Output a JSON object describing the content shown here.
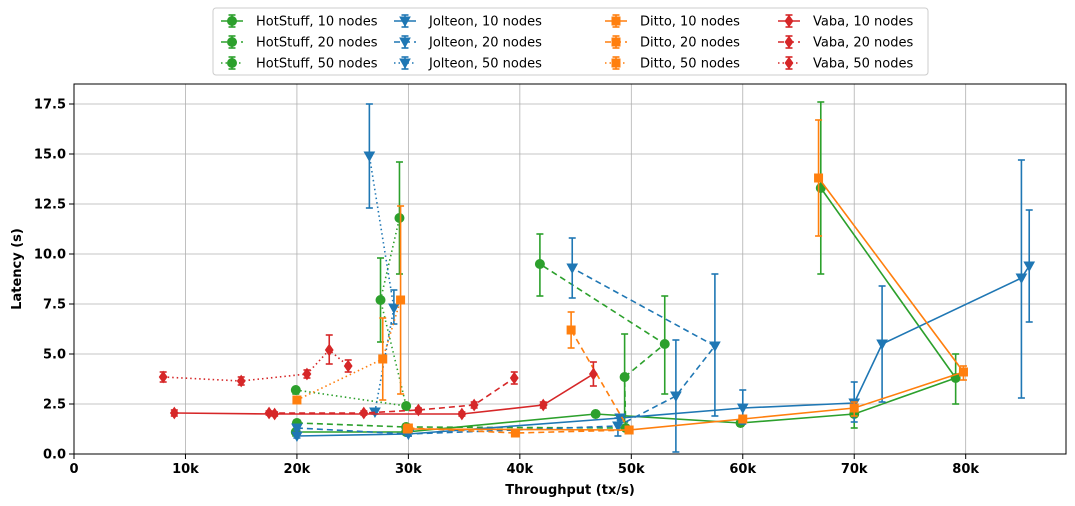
{
  "chart_data": {
    "type": "line",
    "title": "",
    "xlabel": "Throughput (tx/s)",
    "ylabel": "Latency (s)",
    "xlim": [
      0,
      89000
    ],
    "ylim": [
      0,
      18.5
    ],
    "x_ticks": [
      0,
      10000,
      20000,
      30000,
      40000,
      50000,
      60000,
      70000,
      80000
    ],
    "x_tick_labels": [
      "0",
      "10k",
      "20k",
      "30k",
      "40k",
      "50k",
      "60k",
      "70k",
      "80k"
    ],
    "y_ticks": [
      0.0,
      2.5,
      5.0,
      7.5,
      10.0,
      12.5,
      15.0,
      17.5
    ],
    "y_tick_labels": [
      "0.0",
      "2.5",
      "5.0",
      "7.5",
      "10.0",
      "12.5",
      "15.0",
      "17.5"
    ],
    "grid": true,
    "legend_position": "top-center",
    "series": [
      {
        "name": "HotStuff, 10 nodes",
        "color": "#2ca02c",
        "linestyle": "solid",
        "marker": "circle",
        "points": [
          {
            "x": 19900,
            "y": 1.1,
            "lo": 0.9,
            "hi": 1.2
          },
          {
            "x": 29800,
            "y": 1.1,
            "lo": 1.0,
            "hi": 1.2
          },
          {
            "x": 46800,
            "y": 2.0,
            "lo": 1.9,
            "hi": 2.1
          },
          {
            "x": 59800,
            "y": 1.55,
            "lo": 1.4,
            "hi": 1.7
          },
          {
            "x": 70000,
            "y": 2.0,
            "lo": 1.3,
            "hi": 2.4
          },
          {
            "x": 79100,
            "y": 3.8,
            "lo": 2.5,
            "hi": 5.0
          },
          {
            "x": 67000,
            "y": 13.3,
            "lo": 9.0,
            "hi": 17.6
          }
        ]
      },
      {
        "name": "HotStuff, 20 nodes",
        "color": "#2ca02c",
        "linestyle": "dashed",
        "marker": "circle",
        "points": [
          {
            "x": 20000,
            "y": 1.55,
            "lo": 1.4,
            "hi": 1.7
          },
          {
            "x": 29800,
            "y": 1.35,
            "lo": 1.2,
            "hi": 1.5
          },
          {
            "x": 49500,
            "y": 1.3,
            "lo": 1.2,
            "hi": 1.4
          },
          {
            "x": 49400,
            "y": 3.85,
            "lo": 1.6,
            "hi": 6.0
          },
          {
            "x": 53000,
            "y": 5.5,
            "lo": 3.0,
            "hi": 7.9
          },
          {
            "x": 41800,
            "y": 9.5,
            "lo": 7.9,
            "hi": 11.0
          }
        ]
      },
      {
        "name": "HotStuff, 50 nodes",
        "color": "#2ca02c",
        "linestyle": "dotted",
        "marker": "circle",
        "points": [
          {
            "x": 19900,
            "y": 3.2,
            "lo": 3.0,
            "hi": 3.3
          },
          {
            "x": 29800,
            "y": 2.4,
            "lo": 2.2,
            "hi": 2.5
          },
          {
            "x": 27500,
            "y": 7.7,
            "lo": 5.6,
            "hi": 9.8
          },
          {
            "x": 29200,
            "y": 11.8,
            "lo": 9.0,
            "hi": 14.6
          }
        ]
      },
      {
        "name": "Jolteon, 10 nodes",
        "color": "#1f77b4",
        "linestyle": "solid",
        "marker": "triangle-down",
        "points": [
          {
            "x": 20000,
            "y": 0.9,
            "lo": 0.8,
            "hi": 1.0
          },
          {
            "x": 30000,
            "y": 1.0,
            "lo": 0.9,
            "hi": 1.1
          },
          {
            "x": 49000,
            "y": 1.8,
            "lo": 1.7,
            "hi": 1.9
          },
          {
            "x": 60000,
            "y": 2.3,
            "lo": 1.5,
            "hi": 3.2
          },
          {
            "x": 70000,
            "y": 2.55,
            "lo": 1.6,
            "hi": 3.6
          },
          {
            "x": 72500,
            "y": 5.5,
            "lo": 2.6,
            "hi": 8.4
          },
          {
            "x": 85000,
            "y": 8.8,
            "lo": 2.8,
            "hi": 14.7
          },
          {
            "x": 85700,
            "y": 9.4,
            "lo": 6.6,
            "hi": 12.2
          }
        ]
      },
      {
        "name": "Jolteon, 20 nodes",
        "color": "#1f77b4",
        "linestyle": "dashed",
        "marker": "triangle-down",
        "points": [
          {
            "x": 20000,
            "y": 1.3,
            "lo": 1.2,
            "hi": 1.4
          },
          {
            "x": 30000,
            "y": 1.0,
            "lo": 0.9,
            "hi": 1.1
          },
          {
            "x": 48800,
            "y": 1.4,
            "lo": 0.9,
            "hi": 1.8
          },
          {
            "x": 54000,
            "y": 2.9,
            "lo": 0.1,
            "hi": 5.7
          },
          {
            "x": 57500,
            "y": 5.4,
            "lo": 1.9,
            "hi": 9.0
          },
          {
            "x": 44700,
            "y": 9.3,
            "lo": 7.8,
            "hi": 10.8
          }
        ]
      },
      {
        "name": "Jolteon, 50 nodes",
        "color": "#1f77b4",
        "linestyle": "dotted",
        "marker": "triangle-down",
        "points": [
          {
            "x": 27000,
            "y": 2.1,
            "lo": 2.0,
            "hi": 2.2
          },
          {
            "x": 28700,
            "y": 7.3,
            "lo": 6.5,
            "hi": 8.2
          },
          {
            "x": 26500,
            "y": 14.9,
            "lo": 12.3,
            "hi": 17.5
          }
        ]
      },
      {
        "name": "Ditto, 10 nodes",
        "color": "#ff7f0e",
        "linestyle": "solid",
        "marker": "square",
        "points": [
          {
            "x": 29900,
            "y": 1.25,
            "lo": 1.15,
            "hi": 1.35
          },
          {
            "x": 49800,
            "y": 1.2,
            "lo": 1.1,
            "hi": 1.3
          },
          {
            "x": 60000,
            "y": 1.75,
            "lo": 1.6,
            "hi": 1.9
          },
          {
            "x": 70000,
            "y": 2.3,
            "lo": 1.9,
            "hi": 2.6
          },
          {
            "x": 79800,
            "y": 4.1,
            "lo": 3.7,
            "hi": 4.4
          },
          {
            "x": 66800,
            "y": 13.8,
            "lo": 10.9,
            "hi": 16.7
          }
        ]
      },
      {
        "name": "Ditto, 20 nodes",
        "color": "#ff7f0e",
        "linestyle": "dashed",
        "marker": "square",
        "points": [
          {
            "x": 30000,
            "y": 1.3,
            "lo": 1.2,
            "hi": 1.4
          },
          {
            "x": 39600,
            "y": 1.05,
            "lo": 0.95,
            "hi": 1.15
          },
          {
            "x": 49800,
            "y": 1.2,
            "lo": 1.1,
            "hi": 1.3
          },
          {
            "x": 44600,
            "y": 6.2,
            "lo": 5.3,
            "hi": 7.1
          }
        ]
      },
      {
        "name": "Ditto, 50 nodes",
        "color": "#ff7f0e",
        "linestyle": "dotted",
        "marker": "square",
        "points": [
          {
            "x": 20000,
            "y": 2.7,
            "lo": 2.6,
            "hi": 2.8
          },
          {
            "x": 27700,
            "y": 4.75,
            "lo": 2.7,
            "hi": 6.8
          },
          {
            "x": 29300,
            "y": 7.7,
            "lo": 3.0,
            "hi": 12.4
          }
        ]
      },
      {
        "name": "Vaba, 10 nodes",
        "color": "#d62728",
        "linestyle": "solid",
        "marker": "diamond",
        "points": [
          {
            "x": 9000,
            "y": 2.05,
            "lo": 1.9,
            "hi": 2.2
          },
          {
            "x": 18000,
            "y": 2.0,
            "lo": 1.9,
            "hi": 2.1
          },
          {
            "x": 34800,
            "y": 2.0,
            "lo": 1.9,
            "hi": 2.1
          },
          {
            "x": 42100,
            "y": 2.45,
            "lo": 2.3,
            "hi": 2.6
          },
          {
            "x": 46600,
            "y": 4.0,
            "lo": 3.4,
            "hi": 4.6
          }
        ]
      },
      {
        "name": "Vaba, 20 nodes",
        "color": "#d62728",
        "linestyle": "dashed",
        "marker": "diamond",
        "points": [
          {
            "x": 17500,
            "y": 2.05,
            "lo": 1.95,
            "hi": 2.15
          },
          {
            "x": 26000,
            "y": 2.05,
            "lo": 1.95,
            "hi": 2.15
          },
          {
            "x": 30900,
            "y": 2.2,
            "lo": 2.1,
            "hi": 2.3
          },
          {
            "x": 35900,
            "y": 2.45,
            "lo": 2.3,
            "hi": 2.6
          },
          {
            "x": 39500,
            "y": 3.8,
            "lo": 3.5,
            "hi": 4.1
          }
        ]
      },
      {
        "name": "Vaba, 50 nodes",
        "color": "#d62728",
        "linestyle": "dotted",
        "marker": "diamond",
        "points": [
          {
            "x": 8000,
            "y": 3.85,
            "lo": 3.6,
            "hi": 4.1
          },
          {
            "x": 15000,
            "y": 3.65,
            "lo": 3.45,
            "hi": 3.85
          },
          {
            "x": 20900,
            "y": 4.0,
            "lo": 3.8,
            "hi": 4.2
          },
          {
            "x": 22900,
            "y": 5.2,
            "lo": 4.5,
            "hi": 5.95
          },
          {
            "x": 24600,
            "y": 4.4,
            "lo": 4.1,
            "hi": 4.7
          }
        ]
      }
    ]
  }
}
